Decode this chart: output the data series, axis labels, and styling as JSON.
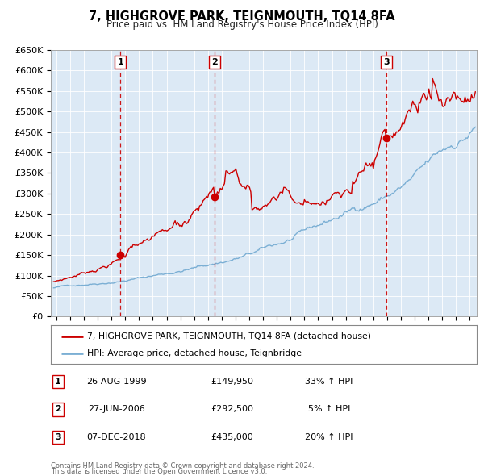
{
  "title": "7, HIGHGROVE PARK, TEIGNMOUTH, TQ14 8FA",
  "subtitle": "Price paid vs. HM Land Registry's House Price Index (HPI)",
  "legend_label_red": "7, HIGHGROVE PARK, TEIGNMOUTH, TQ14 8FA (detached house)",
  "legend_label_blue": "HPI: Average price, detached house, Teignbridge",
  "footer_line1": "Contains HM Land Registry data © Crown copyright and database right 2024.",
  "footer_line2": "This data is licensed under the Open Government Licence v3.0.",
  "transactions": [
    {
      "num": 1,
      "date": "26-AUG-1999",
      "price": 149950,
      "pct": "33%",
      "dir": "↑",
      "label": "HPI",
      "year": 1999.65
    },
    {
      "num": 2,
      "date": "27-JUN-2006",
      "price": 292500,
      "pct": "5%",
      "dir": "↑",
      "label": "HPI",
      "year": 2006.49
    },
    {
      "num": 3,
      "date": "07-DEC-2018",
      "price": 435000,
      "pct": "20%",
      "dir": "↑",
      "label": "HPI",
      "year": 2018.93
    }
  ],
  "ylim": [
    0,
    650000
  ],
  "yticks": [
    0,
    50000,
    100000,
    150000,
    200000,
    250000,
    300000,
    350000,
    400000,
    450000,
    500000,
    550000,
    600000,
    650000
  ],
  "ytick_labels": [
    "£0",
    "£50K",
    "£100K",
    "£150K",
    "£200K",
    "£250K",
    "£300K",
    "£350K",
    "£400K",
    "£450K",
    "£500K",
    "£550K",
    "£600K",
    "£650K"
  ],
  "xlim_start": 1994.6,
  "xlim_end": 2025.5,
  "background_color": "#dce9f5",
  "red_line_color": "#cc0000",
  "blue_line_color": "#7bafd4",
  "vline_color": "#cc0000",
  "marker_color": "#cc0000",
  "box_color": "#cc0000",
  "grid_color": "#ffffff",
  "sale_years": [
    1999.65,
    2006.49,
    2018.93
  ],
  "sale_prices": [
    149950,
    292500,
    435000
  ]
}
